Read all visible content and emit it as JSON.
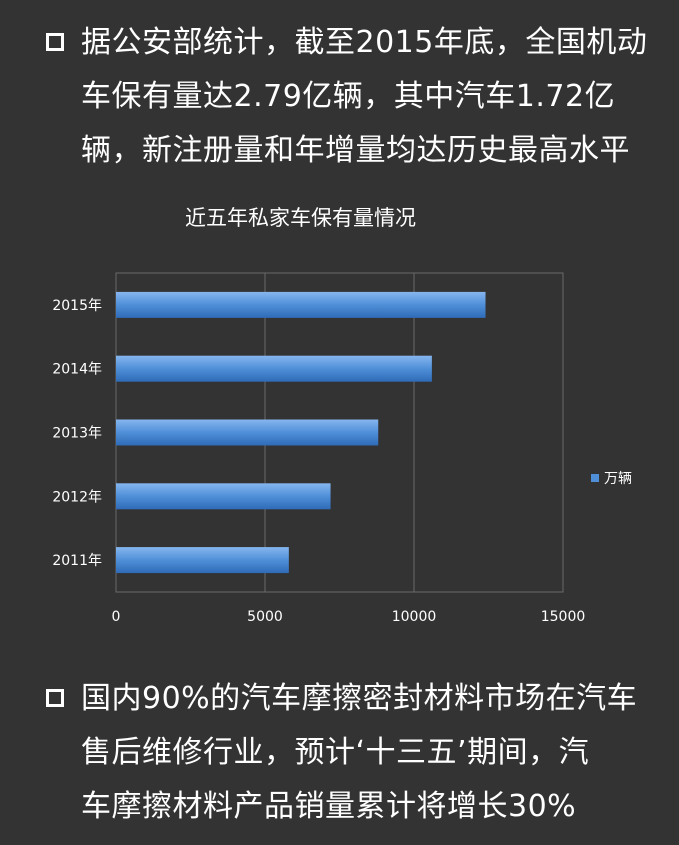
{
  "bullet1": {
    "lines": [
      "据公安部统计，截至2015年底，全国机动",
      "车保有量达2.79亿辆，其中汽车1.72亿",
      "辆，新注册量和年增量均达历史最高水平"
    ]
  },
  "bullet2": {
    "lines": [
      "国内90%的汽车摩擦密封材料市场在汽车",
      "售后维修行业，预计‘十三五’期间，汽",
      "车摩擦材料产品销量累计将增长30%"
    ]
  },
  "chart_data": {
    "type": "bar",
    "orientation": "horizontal",
    "title": "近五年私家车保有量情况",
    "categories": [
      "2011年",
      "2012年",
      "2013年",
      "2014年",
      "2015年"
    ],
    "series": [
      {
        "name": "万辆",
        "values": [
          5800,
          7200,
          8800,
          10600,
          12400
        ],
        "color": "#4f8fd8"
      }
    ],
    "xlim": [
      0,
      15000
    ],
    "xticks": [
      "0",
      "5000",
      "10000",
      "15000"
    ],
    "grid": true,
    "legend_position": "right"
  }
}
